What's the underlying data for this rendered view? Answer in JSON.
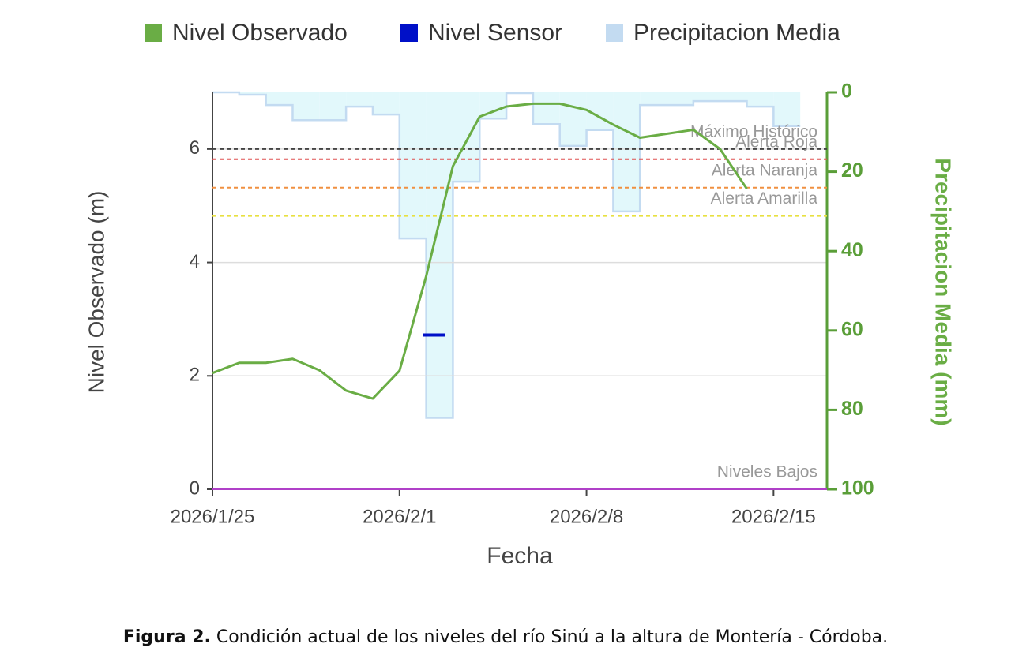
{
  "chart_data": {
    "type": "line",
    "x_label": "Fecha",
    "y_label": "Nivel Observado (m)",
    "y2_label": "Precipitacion Media (mm)",
    "x": [
      "2026/1/25",
      "2026/1/26",
      "2026/1/27",
      "2026/1/28",
      "2026/1/29",
      "2026/1/30",
      "2026/1/31",
      "2026/2/1",
      "2026/2/2",
      "2026/2/3",
      "2026/2/4",
      "2026/2/5",
      "2026/2/6",
      "2026/2/7",
      "2026/2/8",
      "2026/2/9",
      "2026/2/10",
      "2026/2/11",
      "2026/2/12",
      "2026/2/13",
      "2026/2/14",
      "2026/2/15"
    ],
    "xlim": [
      "2026/1/25",
      "2026/2/17"
    ],
    "xticks": [
      "2026/1/25",
      "2026/2/1",
      "2026/2/8",
      "2026/2/15"
    ],
    "ylim": [
      0,
      7
    ],
    "yticks": [
      0,
      2,
      4,
      6
    ],
    "y2lim": [
      100,
      0
    ],
    "y2ticks": [
      0,
      20,
      40,
      60,
      80,
      100
    ],
    "grid": true,
    "series": [
      {
        "name": "Nivel Observado",
        "type": "line",
        "color": "#6aad45",
        "values": [
          2.05,
          2.23,
          2.23,
          2.3,
          2.1,
          1.74,
          1.6,
          2.09,
          3.76,
          5.7,
          6.57,
          6.75,
          6.8,
          6.8,
          6.69,
          6.43,
          6.2,
          6.27,
          6.34,
          6.0,
          5.3,
          null
        ]
      },
      {
        "name": "Nivel Sensor",
        "type": "marker",
        "color": "#0010c8",
        "values": [
          null,
          null,
          null,
          null,
          null,
          null,
          null,
          null,
          2.72,
          null,
          null,
          null,
          null,
          null,
          null,
          null,
          null,
          null,
          null,
          null,
          null,
          null
        ]
      },
      {
        "name": "Precipitacion Media",
        "type": "bar",
        "axis": "y2",
        "color": "#c3dbf1",
        "values": [
          0,
          0.6,
          3.2,
          7,
          7,
          3.6,
          5.6,
          36.8,
          82,
          22.5,
          6.6,
          0.2,
          8,
          13.5,
          9.5,
          30,
          3.2,
          3.2,
          2.2,
          2.2,
          3.6,
          8.5
        ]
      }
    ],
    "thresholds": [
      {
        "label": "Máximo Histórico",
        "value": 6.0,
        "color": "#444444"
      },
      {
        "label": "Alerta Roja",
        "value": 5.82,
        "color": "#e05050"
      },
      {
        "label": "Alerta Naranja",
        "value": 5.32,
        "color": "#f09040"
      },
      {
        "label": "Alerta Amarilla",
        "value": 4.82,
        "color": "#e8e040"
      },
      {
        "label": "Niveles Bajos",
        "value": 0,
        "color": "#b040c8"
      }
    ]
  },
  "caption": {
    "label": "Figura 2.",
    "text": "Condición actual de los niveles del río Sinú a la altura de Montería - Córdoba."
  }
}
